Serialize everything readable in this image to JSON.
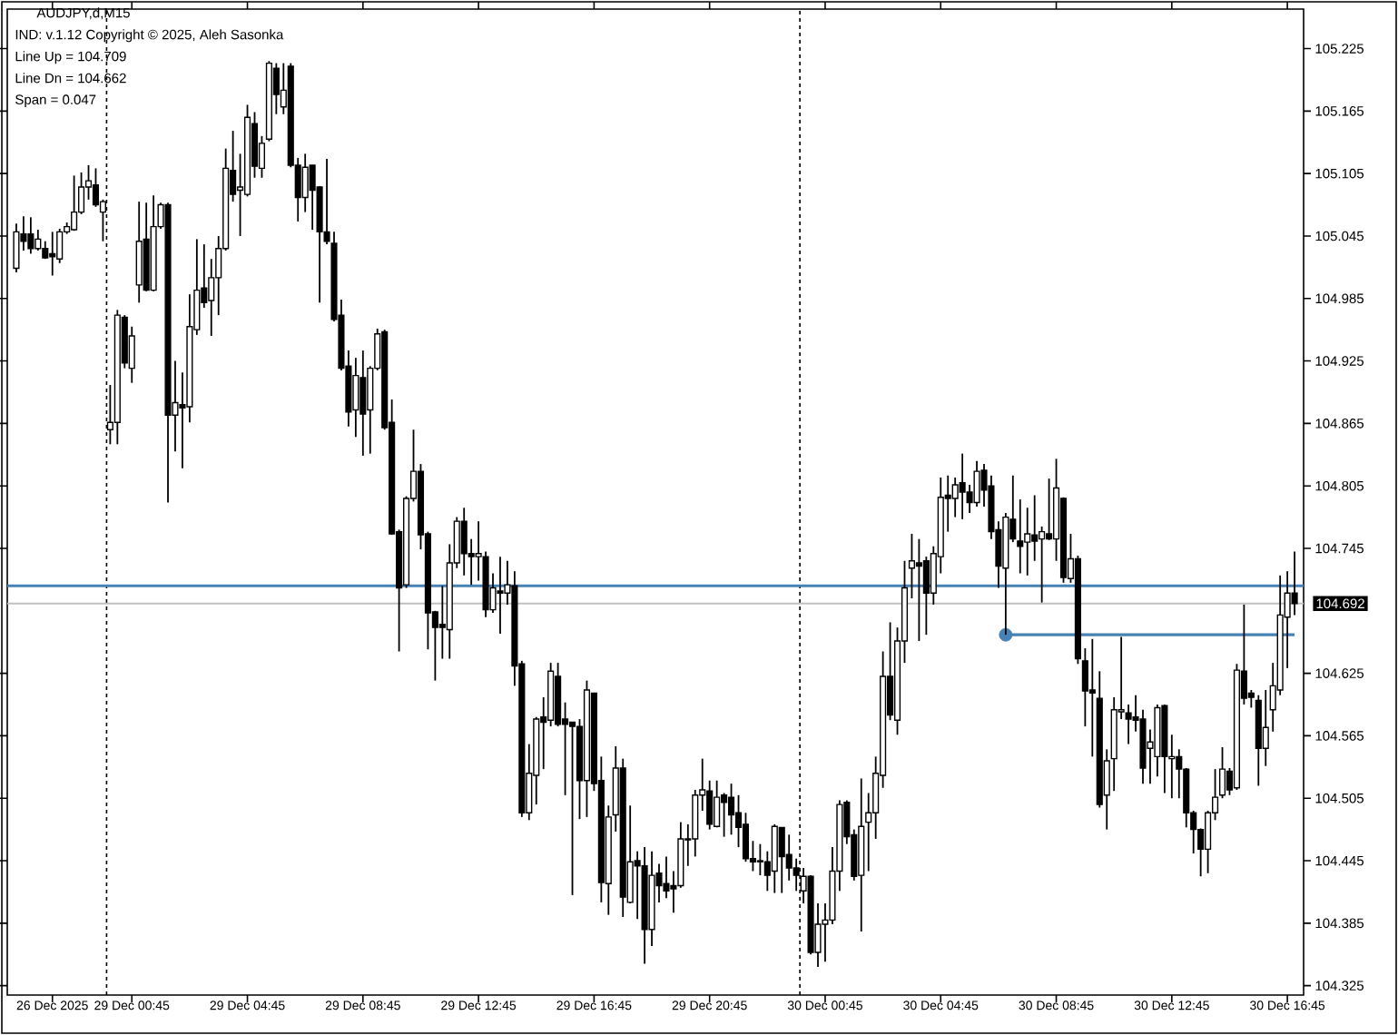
{
  "chart_data": {
    "type": "candlestick",
    "title": "AUDJPY,d,M15",
    "annotations": [
      "IND: v.1.12 Copyright © 2025, Aleh Sasonka",
      "Line Up = 104.709",
      "Line Dn = 104.662",
      "Span = 0.047"
    ],
    "color": "#000000",
    "categories": [
      null,
      null,
      null,
      null,
      null,
      "26 Dec 2025",
      null,
      null,
      null,
      null,
      null,
      null,
      null,
      null,
      null,
      null,
      "29 Dec 00:45",
      null,
      null,
      null,
      null,
      null,
      null,
      null,
      null,
      null,
      null,
      null,
      null,
      null,
      null,
      null,
      "29 Dec 04:45",
      null,
      null,
      null,
      null,
      null,
      null,
      null,
      null,
      null,
      null,
      null,
      null,
      null,
      null,
      null,
      "29 Dec 08:45",
      null,
      null,
      null,
      null,
      null,
      null,
      null,
      null,
      null,
      null,
      null,
      null,
      null,
      null,
      null,
      "29 Dec 12:45",
      null,
      null,
      null,
      null,
      null,
      null,
      null,
      null,
      null,
      null,
      null,
      null,
      null,
      null,
      null,
      "29 Dec 16:45",
      null,
      null,
      null,
      null,
      null,
      null,
      null,
      null,
      null,
      null,
      null,
      null,
      null,
      null,
      null,
      "29 Dec 20:45",
      null,
      null,
      null,
      null,
      null,
      null,
      null,
      null,
      null,
      null,
      null,
      null,
      null,
      null,
      null,
      "30 Dec 00:45",
      null,
      null,
      null,
      null,
      null,
      null,
      null,
      null,
      null,
      null,
      null,
      null,
      null,
      null,
      null,
      "30 Dec 04:45",
      null,
      null,
      null,
      null,
      null,
      null,
      null,
      null,
      null,
      null,
      null,
      null,
      null,
      null,
      null,
      "30 Dec 08:45",
      null,
      null,
      null,
      null,
      null,
      null,
      null,
      null,
      null,
      null,
      null,
      null,
      null,
      null,
      null,
      "30 Dec 12:45",
      null,
      null,
      null,
      null,
      null,
      null,
      null,
      null,
      null,
      null,
      null,
      null,
      null,
      null,
      null,
      "30 Dec 16:45",
      null
    ],
    "ohlc": [
      [
        105.014,
        105.057,
        105.01,
        105.049
      ],
      [
        105.047,
        105.064,
        105.031,
        105.04
      ],
      [
        105.047,
        105.063,
        105.028,
        105.033
      ],
      [
        105.033,
        105.051,
        105.031,
        105.042
      ],
      [
        105.033,
        105.04,
        105.023,
        105.024
      ],
      [
        105.028,
        105.049,
        105.007,
        105.025
      ],
      [
        105.023,
        105.052,
        105.019,
        105.049
      ],
      [
        105.049,
        105.058,
        105.047,
        105.054
      ],
      [
        105.051,
        105.103,
        105.05,
        105.068
      ],
      [
        105.068,
        105.106,
        105.066,
        105.092
      ],
      [
        105.092,
        105.113,
        105.08,
        105.098
      ],
      [
        105.094,
        105.11,
        105.073,
        105.075
      ],
      [
        105.068,
        105.08,
        105.04,
        105.078
      ],
      [
        104.859,
        104.902,
        104.845,
        104.866
      ],
      [
        104.866,
        104.974,
        104.845,
        104.969
      ],
      [
        104.967,
        104.969,
        104.918,
        104.923
      ],
      [
        104.918,
        104.958,
        104.904,
        104.949
      ],
      [
        104.998,
        105.078,
        104.981,
        105.04
      ],
      [
        105.042,
        105.077,
        104.992,
        104.993
      ],
      [
        104.993,
        105.084,
        104.992,
        105.054
      ],
      [
        105.054,
        105.077,
        105.052,
        105.075
      ],
      [
        105.075,
        105.077,
        104.789,
        104.873
      ],
      [
        104.873,
        104.925,
        104.838,
        104.885
      ],
      [
        104.883,
        104.914,
        104.822,
        104.88
      ],
      [
        104.881,
        104.989,
        104.866,
        104.958
      ],
      [
        104.955,
        105.042,
        104.95,
        104.993
      ],
      [
        104.995,
        105.037,
        104.976,
        104.981
      ],
      [
        104.983,
        105.023,
        104.949,
        105.005
      ],
      [
        105.005,
        105.045,
        104.969,
        105.033
      ],
      [
        105.033,
        105.129,
        105.031,
        105.11
      ],
      [
        105.108,
        105.146,
        105.078,
        105.085
      ],
      [
        105.089,
        105.124,
        105.045,
        105.092
      ],
      [
        105.085,
        105.171,
        105.083,
        105.159
      ],
      [
        105.153,
        105.164,
        105.101,
        105.112
      ],
      [
        105.11,
        105.141,
        105.101,
        105.134
      ],
      [
        105.138,
        105.213,
        105.136,
        105.211
      ],
      [
        105.206,
        105.211,
        105.162,
        105.181
      ],
      [
        105.169,
        105.211,
        105.162,
        105.185
      ],
      [
        105.208,
        105.211,
        105.111,
        105.113
      ],
      [
        105.113,
        105.12,
        105.059,
        105.082
      ],
      [
        105.082,
        105.124,
        105.068,
        105.111
      ],
      [
        105.113,
        105.113,
        105.051,
        105.089
      ],
      [
        105.092,
        105.093,
        104.981,
        105.049
      ],
      [
        105.049,
        105.119,
        105.037,
        105.04
      ],
      [
        105.038,
        105.049,
        104.963,
        104.965
      ],
      [
        104.969,
        104.984,
        104.916,
        104.918
      ],
      [
        104.92,
        104.935,
        104.862,
        104.876
      ],
      [
        104.878,
        104.928,
        104.852,
        104.911
      ],
      [
        104.909,
        104.935,
        104.834,
        104.874
      ],
      [
        104.878,
        104.92,
        104.836,
        104.918
      ],
      [
        104.918,
        104.956,
        104.916,
        104.951
      ],
      [
        104.953,
        104.955,
        104.859,
        104.861
      ],
      [
        104.866,
        104.888,
        104.758,
        104.759
      ],
      [
        104.761,
        104.763,
        104.646,
        104.707
      ],
      [
        104.71,
        104.795,
        104.707,
        104.793
      ],
      [
        104.793,
        104.859,
        104.79,
        104.819
      ],
      [
        104.819,
        104.826,
        104.744,
        104.758
      ],
      [
        104.759,
        104.761,
        104.648,
        104.683
      ],
      [
        104.684,
        104.685,
        104.618,
        104.669
      ],
      [
        104.672,
        104.709,
        104.639,
        104.669
      ],
      [
        104.667,
        104.749,
        104.639,
        104.731
      ],
      [
        104.731,
        104.775,
        104.726,
        104.771
      ],
      [
        104.771,
        104.784,
        104.719,
        104.74
      ],
      [
        104.74,
        104.754,
        104.71,
        104.737
      ],
      [
        104.737,
        104.771,
        104.714,
        104.74
      ],
      [
        104.737,
        104.742,
        104.679,
        104.686
      ],
      [
        104.686,
        104.721,
        104.683,
        104.707
      ],
      [
        104.704,
        104.737,
        104.663,
        104.702
      ],
      [
        104.702,
        104.733,
        104.691,
        104.71
      ],
      [
        104.709,
        104.723,
        104.613,
        104.632
      ],
      [
        104.634,
        104.637,
        104.487,
        104.491
      ],
      [
        104.491,
        104.557,
        104.484,
        104.529
      ],
      [
        104.527,
        104.583,
        104.499,
        104.581
      ],
      [
        104.583,
        104.602,
        104.533,
        104.578
      ],
      [
        104.58,
        104.635,
        104.574,
        104.627
      ],
      [
        104.622,
        104.635,
        104.574,
        104.576
      ],
      [
        104.581,
        104.597,
        104.508,
        104.576
      ],
      [
        104.578,
        104.578,
        104.412,
        104.574
      ],
      [
        104.574,
        104.581,
        104.485,
        104.522
      ],
      [
        104.522,
        104.618,
        104.487,
        104.609
      ],
      [
        104.606,
        104.606,
        104.512,
        104.519
      ],
      [
        104.522,
        104.545,
        104.405,
        104.424
      ],
      [
        104.423,
        104.498,
        104.393,
        104.487
      ],
      [
        104.489,
        104.555,
        104.473,
        104.534
      ],
      [
        104.534,
        104.543,
        104.391,
        104.41
      ],
      [
        104.405,
        104.498,
        104.404,
        104.444
      ],
      [
        104.445,
        104.454,
        104.389,
        104.44
      ],
      [
        104.44,
        104.458,
        104.346,
        104.379
      ],
      [
        104.379,
        104.454,
        104.363,
        104.431
      ],
      [
        104.433,
        104.442,
        104.405,
        104.421
      ],
      [
        104.423,
        104.449,
        104.409,
        104.416
      ],
      [
        104.421,
        104.435,
        104.395,
        104.418
      ],
      [
        104.421,
        104.482,
        104.419,
        104.466
      ],
      [
        104.465,
        104.48,
        104.44,
        104.466
      ],
      [
        104.466,
        104.513,
        104.449,
        104.508
      ],
      [
        104.508,
        104.543,
        104.493,
        104.513
      ],
      [
        104.512,
        104.522,
        104.475,
        104.48
      ],
      [
        104.478,
        104.522,
        104.477,
        104.506
      ],
      [
        104.508,
        104.51,
        104.468,
        104.501
      ],
      [
        104.506,
        104.519,
        104.47,
        104.489
      ],
      [
        104.491,
        104.508,
        104.458,
        104.477
      ],
      [
        104.48,
        104.491,
        104.444,
        104.447
      ],
      [
        104.447,
        104.464,
        104.435,
        104.444
      ],
      [
        104.444,
        104.461,
        104.431,
        104.445
      ],
      [
        104.444,
        104.454,
        104.416,
        104.431
      ],
      [
        104.435,
        104.48,
        104.414,
        104.478
      ],
      [
        104.477,
        104.477,
        104.414,
        104.449
      ],
      [
        104.451,
        104.47,
        104.426,
        104.438
      ],
      [
        104.438,
        104.447,
        104.416,
        104.431
      ],
      [
        104.416,
        104.438,
        104.404,
        104.43
      ],
      [
        104.43,
        104.431,
        104.355,
        104.357
      ],
      [
        104.357,
        104.404,
        104.343,
        104.384
      ],
      [
        104.384,
        104.404,
        104.348,
        104.388
      ],
      [
        104.388,
        104.458,
        104.384,
        104.435
      ],
      [
        104.435,
        104.503,
        104.416,
        104.499
      ],
      [
        104.501,
        104.503,
        104.461,
        104.468
      ],
      [
        104.47,
        104.475,
        104.426,
        104.43
      ],
      [
        104.431,
        104.524,
        104.377,
        104.478
      ],
      [
        104.482,
        104.51,
        104.435,
        104.491
      ],
      [
        104.491,
        104.545,
        104.466,
        104.529
      ],
      [
        104.527,
        104.646,
        104.515,
        104.622
      ],
      [
        104.622,
        104.674,
        104.58,
        104.585
      ],
      [
        104.58,
        104.669,
        104.566,
        104.656
      ],
      [
        104.656,
        104.733,
        104.635,
        104.707
      ],
      [
        104.726,
        104.759,
        104.697,
        104.733
      ],
      [
        104.731,
        104.754,
        104.656,
        104.728
      ],
      [
        104.733,
        104.737,
        104.662,
        104.702
      ],
      [
        104.702,
        104.747,
        104.691,
        104.74
      ],
      [
        104.737,
        104.813,
        104.721,
        104.794
      ],
      [
        104.796,
        104.815,
        104.761,
        104.793
      ],
      [
        104.793,
        104.813,
        104.775,
        104.806
      ],
      [
        104.808,
        104.836,
        104.773,
        104.799
      ],
      [
        104.799,
        104.806,
        104.779,
        104.789
      ],
      [
        104.789,
        104.829,
        104.785,
        104.819
      ],
      [
        104.82,
        104.826,
        104.785,
        104.801
      ],
      [
        104.805,
        104.815,
        104.754,
        104.761
      ],
      [
        104.763,
        104.771,
        104.707,
        104.728
      ],
      [
        104.726,
        104.779,
        104.662,
        104.775
      ],
      [
        104.773,
        104.815,
        104.751,
        104.754
      ],
      [
        104.752,
        104.792,
        104.721,
        104.747
      ],
      [
        104.751,
        104.784,
        104.719,
        104.759
      ],
      [
        104.758,
        104.796,
        104.733,
        104.752
      ],
      [
        104.754,
        104.766,
        104.693,
        104.761
      ],
      [
        104.759,
        104.812,
        104.753,
        104.754
      ],
      [
        104.754,
        104.831,
        104.733,
        104.803
      ],
      [
        104.793,
        104.794,
        104.712,
        104.717
      ],
      [
        104.716,
        104.759,
        104.712,
        104.735
      ],
      [
        104.735,
        104.738,
        104.634,
        104.639
      ],
      [
        104.637,
        104.649,
        104.574,
        104.608
      ],
      [
        104.609,
        104.658,
        104.545,
        104.606
      ],
      [
        104.601,
        104.627,
        104.496,
        104.499
      ],
      [
        104.508,
        104.552,
        104.475,
        104.541
      ],
      [
        104.543,
        104.602,
        104.512,
        104.59
      ],
      [
        104.588,
        104.66,
        104.581,
        104.59
      ],
      [
        104.587,
        104.595,
        104.557,
        104.581
      ],
      [
        104.583,
        104.604,
        104.569,
        104.58
      ],
      [
        104.581,
        104.59,
        104.519,
        104.534
      ],
      [
        104.553,
        104.571,
        104.519,
        104.559
      ],
      [
        104.545,
        104.595,
        104.526,
        104.592
      ],
      [
        104.594,
        104.595,
        104.51,
        104.545
      ],
      [
        104.543,
        104.566,
        104.505,
        104.545
      ],
      [
        104.545,
        104.552,
        104.505,
        104.533
      ],
      [
        104.533,
        104.534,
        104.477,
        104.491
      ],
      [
        104.491,
        104.493,
        104.452,
        104.475
      ],
      [
        104.475,
        104.476,
        104.43,
        104.456
      ],
      [
        104.456,
        104.493,
        104.433,
        104.491
      ],
      [
        104.491,
        104.533,
        104.484,
        104.506
      ],
      [
        104.508,
        104.554,
        104.505,
        104.533
      ],
      [
        104.531,
        104.534,
        104.508,
        104.513
      ],
      [
        104.515,
        104.634,
        104.513,
        104.628
      ],
      [
        104.627,
        104.691,
        104.595,
        104.601
      ],
      [
        104.606,
        104.609,
        104.592,
        104.602
      ],
      [
        104.599,
        104.604,
        104.517,
        104.553
      ],
      [
        104.553,
        104.609,
        104.536,
        104.573
      ],
      [
        104.59,
        104.635,
        104.569,
        104.613
      ],
      [
        104.609,
        104.719,
        104.604,
        104.681
      ],
      [
        104.679,
        104.723,
        104.63,
        104.702
      ],
      [
        104.702,
        104.742,
        104.681,
        104.692
      ]
    ],
    "series": [
      {
        "type": "line",
        "color": "#4682b4",
        "values": [
          null,
          null,
          null,
          null,
          null,
          null,
          null,
          null,
          null,
          null,
          null,
          null,
          null,
          null,
          null,
          null,
          null,
          null,
          null,
          null,
          null,
          null,
          null,
          null,
          null,
          null,
          null,
          null,
          null,
          null,
          null,
          null,
          null,
          null,
          null,
          null,
          null,
          null,
          null,
          null,
          null,
          null,
          null,
          null,
          null,
          null,
          null,
          null,
          null,
          null,
          null,
          null,
          null,
          null,
          null,
          null,
          null,
          null,
          null,
          null,
          null,
          null,
          null,
          null,
          null,
          null,
          null,
          null,
          null,
          null,
          null,
          null,
          null,
          null,
          null,
          null,
          null,
          null,
          null,
          null,
          null,
          null,
          null,
          null,
          null,
          null,
          null,
          null,
          null,
          null,
          null,
          null,
          null,
          null,
          null,
          null,
          null,
          null,
          null,
          null,
          null,
          null,
          null,
          null,
          null,
          null,
          null,
          null,
          null,
          null,
          null,
          null,
          null,
          null,
          null,
          null,
          null,
          null,
          null,
          null,
          null,
          null,
          null,
          null,
          null,
          null,
          null,
          null,
          null,
          null,
          null,
          null,
          null,
          null,
          null,
          null,
          null,
          104.662,
          104.662,
          104.662,
          104.662,
          104.662,
          104.662,
          104.662,
          104.662,
          104.662,
          104.662,
          104.662,
          104.662,
          104.662,
          104.662,
          104.662,
          104.662,
          104.662,
          104.662,
          104.662,
          104.662,
          104.662,
          104.662,
          104.662,
          104.662,
          104.662,
          104.662,
          104.662,
          104.662,
          104.662,
          104.662,
          104.662,
          104.662,
          104.662,
          104.662,
          104.662,
          104.662,
          104.662,
          104.662,
          104.662,
          104.662,
          104.662
        ]
      },
      {
        "type": "scatter",
        "color": "#4682b4",
        "marker": "circle",
        "values": [
          null,
          null,
          null,
          null,
          null,
          null,
          null,
          null,
          null,
          null,
          null,
          null,
          null,
          null,
          null,
          null,
          null,
          null,
          null,
          null,
          null,
          null,
          null,
          null,
          null,
          null,
          null,
          null,
          null,
          null,
          null,
          null,
          null,
          null,
          null,
          null,
          null,
          null,
          null,
          null,
          null,
          null,
          null,
          null,
          null,
          null,
          null,
          null,
          null,
          null,
          null,
          null,
          null,
          null,
          null,
          null,
          null,
          null,
          null,
          null,
          null,
          null,
          null,
          null,
          null,
          null,
          null,
          null,
          null,
          null,
          null,
          null,
          null,
          null,
          null,
          null,
          null,
          null,
          null,
          null,
          null,
          null,
          null,
          null,
          null,
          null,
          null,
          null,
          null,
          null,
          null,
          null,
          null,
          null,
          null,
          null,
          null,
          null,
          null,
          null,
          null,
          null,
          null,
          null,
          null,
          null,
          null,
          null,
          null,
          null,
          null,
          null,
          null,
          null,
          null,
          null,
          null,
          null,
          null,
          null,
          null,
          null,
          null,
          null,
          null,
          null,
          null,
          null,
          null,
          null,
          null,
          null,
          null,
          null,
          null,
          null,
          null,
          104.662,
          null,
          null,
          null,
          null,
          null,
          null,
          null,
          null,
          null,
          null,
          null,
          null,
          null,
          null,
          null,
          null,
          null,
          null,
          null,
          null,
          null,
          null,
          null,
          null,
          null,
          null,
          null,
          null,
          null,
          null,
          null,
          null,
          null,
          null,
          null,
          null,
          null,
          null,
          null,
          null
        ]
      }
    ],
    "ylim": [
      104.316,
      105.263
    ],
    "yticks": [
      104.325,
      104.385,
      104.445,
      104.505,
      104.565,
      104.625,
      104.745,
      104.805,
      104.865,
      104.925,
      104.985,
      105.045,
      105.105,
      105.165,
      105.225
    ],
    "ref_lines": [
      {
        "axis": "y",
        "value": 104.709,
        "color": "#4682b4",
        "line_style": "solid"
      },
      {
        "axis": "y",
        "value": 104.692,
        "color": "#c0c0c0",
        "line_style": "solid",
        "label": "104.692"
      }
    ]
  }
}
